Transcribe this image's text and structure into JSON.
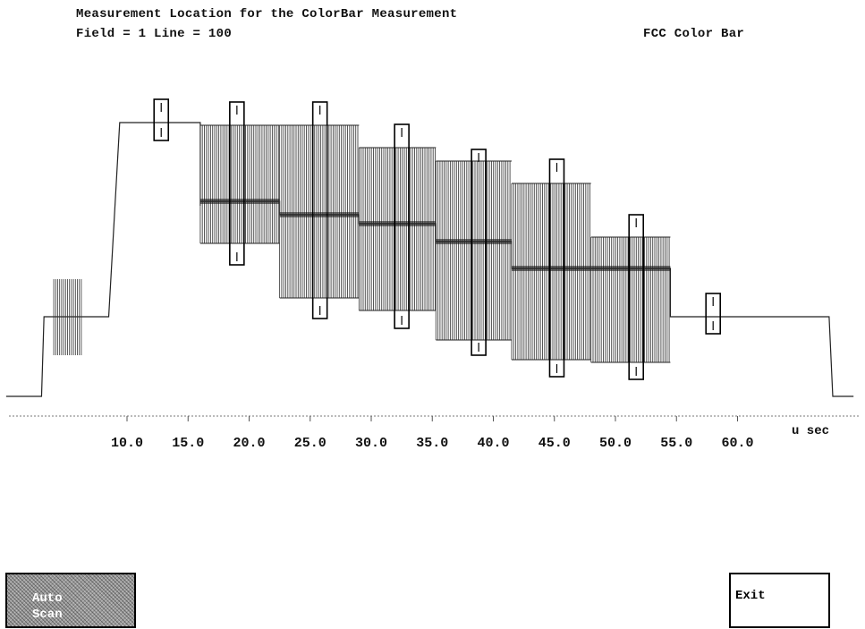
{
  "header": {
    "title": "Measurement Location for the ColorBar Measurement",
    "field_line": "Field = 1 Line = 100",
    "pattern": "FCC Color Bar"
  },
  "axis": {
    "unit": "u sec",
    "ticks": [
      "10.0",
      "15.0",
      "20.0",
      "25.0",
      "30.0",
      "35.0",
      "40.0",
      "45.0",
      "50.0",
      "55.0",
      "60.0"
    ]
  },
  "waveform": {
    "bars": [
      {
        "name": "sync-tip",
        "start_us": 0.5,
        "end_us": 2.8,
        "level": "low"
      },
      {
        "name": "colorburst",
        "start_us": 4.0,
        "end_us": 6.4,
        "level": "blanking",
        "burst": true
      },
      {
        "name": "white",
        "start_us": 10.0,
        "end_us": 16.0,
        "level": "peak"
      },
      {
        "name": "yellow",
        "start_us": 16.0,
        "end_us": 22.5
      },
      {
        "name": "cyan",
        "start_us": 22.5,
        "end_us": 29.0
      },
      {
        "name": "green",
        "start_us": 29.0,
        "end_us": 35.3
      },
      {
        "name": "magenta",
        "start_us": 35.3,
        "end_us": 41.5
      },
      {
        "name": "red",
        "start_us": 41.5,
        "end_us": 48.0
      },
      {
        "name": "blue",
        "start_us": 48.0,
        "end_us": 54.5
      },
      {
        "name": "blanking-end",
        "start_us": 54.5,
        "end_us": 62.0,
        "level": "blanking"
      }
    ],
    "measurement_markers_us": [
      12.8,
      19.0,
      25.8,
      32.5,
      38.8,
      45.2,
      51.7,
      58.0
    ]
  },
  "buttons": {
    "auto_line1": "Auto",
    "auto_line2": "Scan",
    "exit": "Exit"
  }
}
